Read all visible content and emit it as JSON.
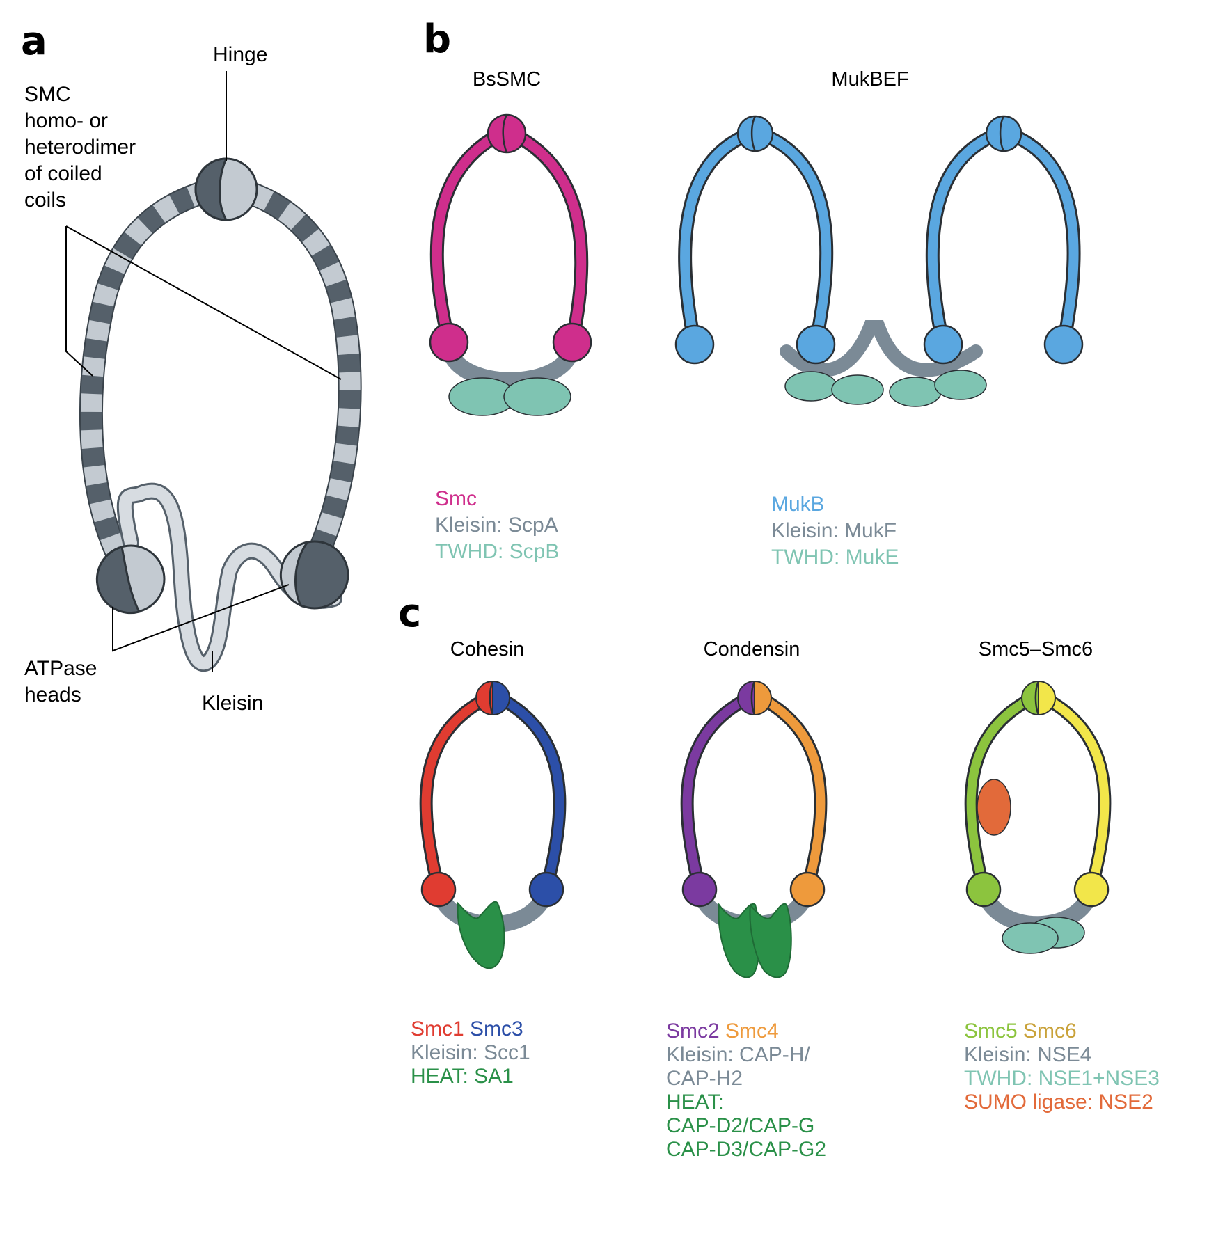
{
  "panel_a": {
    "letter": "a",
    "hinge_label": "Hinge",
    "smc_label": [
      "SMC",
      "homo- or",
      "heterodimer",
      "of coiled",
      "coils"
    ],
    "atpase_label": [
      "ATPase",
      "heads"
    ],
    "kleisin_label": "Kleisin"
  },
  "panel_b": {
    "letter": "b",
    "bssmc": {
      "title": "BsSMC",
      "legend": [
        {
          "text": "Smc",
          "color": "#cf2e8c"
        },
        {
          "text": "Kleisin: ScpA",
          "color": "#7b8a96"
        },
        {
          "text": "TWHD: ScpB",
          "color": "#7fc4b2"
        }
      ]
    },
    "mukbef": {
      "title": "MukBEF",
      "legend": [
        {
          "text": "MukB",
          "color": "#5aa7e0"
        },
        {
          "text": "Kleisin: MukF",
          "color": "#7b8a96"
        },
        {
          "text": "TWHD: MukE",
          "color": "#7fc4b2"
        }
      ]
    }
  },
  "panel_c": {
    "letter": "c",
    "cohesin": {
      "title": "Cohesin",
      "legend": [
        {
          "parts": [
            {
              "text": "Smc1",
              "color": "#e03c31"
            },
            {
              "text": " Smc3",
              "color": "#2c4fa8"
            }
          ]
        },
        {
          "parts": [
            {
              "text": "Kleisin: Scc1",
              "color": "#7b8a96"
            }
          ]
        },
        {
          "parts": [
            {
              "text": "HEAT: SA1",
              "color": "#2a9048"
            }
          ]
        }
      ]
    },
    "condensin": {
      "title": "Condensin",
      "legend": [
        {
          "parts": [
            {
              "text": "Smc2",
              "color": "#7b3aa0"
            },
            {
              "text": " Smc4",
              "color": "#ee9a3c"
            }
          ]
        },
        {
          "parts": [
            {
              "text": "Kleisin: CAP-H/",
              "color": "#7b8a96"
            }
          ]
        },
        {
          "parts": [
            {
              "text": "CAP-H2",
              "color": "#7b8a96"
            }
          ]
        },
        {
          "parts": [
            {
              "text": "HEAT:",
              "color": "#2a9048"
            }
          ]
        },
        {
          "parts": [
            {
              "text": "CAP-D2/CAP-G",
              "color": "#2a9048"
            }
          ]
        },
        {
          "parts": [
            {
              "text": "CAP-D3/CAP-G2",
              "color": "#2a9048"
            }
          ]
        }
      ]
    },
    "smc56": {
      "title": "Smc5–Smc6",
      "legend": [
        {
          "parts": [
            {
              "text": "Smc5",
              "color": "#8cc43e"
            },
            {
              "text": " Smc6",
              "color": "#c9a23a"
            }
          ]
        },
        {
          "parts": [
            {
              "text": "Kleisin: NSE4",
              "color": "#7b8a96"
            }
          ]
        },
        {
          "parts": [
            {
              "text": "TWHD: NSE1+NSE3",
              "color": "#7fc4b2"
            }
          ]
        },
        {
          "parts": [
            {
              "text": "SUMO ligase: NSE2",
              "color": "#e26a3a"
            }
          ]
        }
      ]
    }
  },
  "colors": {
    "dark_grey": "#55606a",
    "light_grey": "#c3cad1",
    "kleisin_grey": "#7b8a96",
    "twhd_teal": "#7fc4b2",
    "heat_green": "#2a9048",
    "nse2_orange": "#e26a3a"
  }
}
